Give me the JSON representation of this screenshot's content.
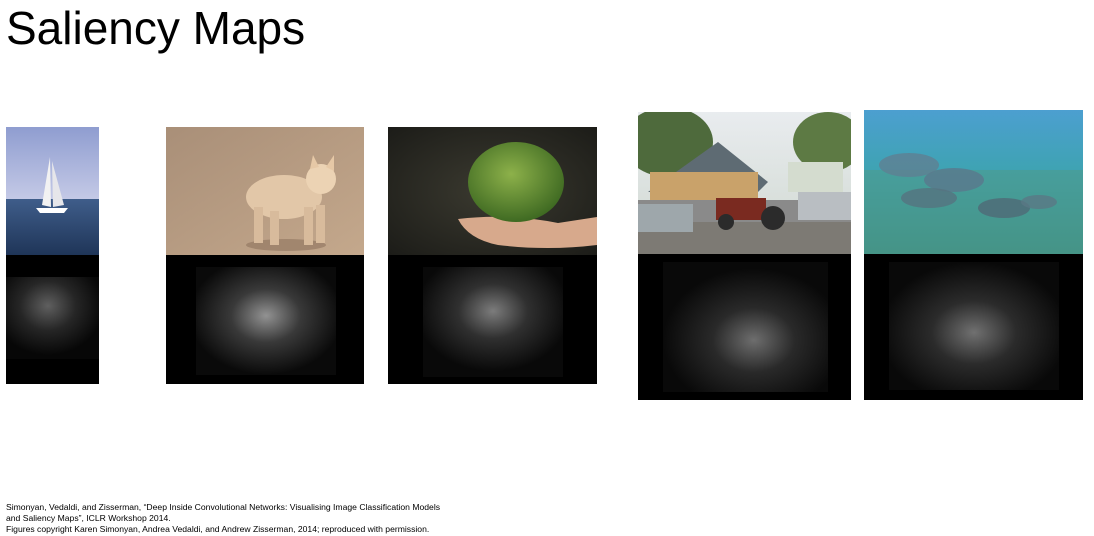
{
  "slide": {
    "title": "Saliency Maps"
  },
  "figures": [
    {
      "subject": "sailboat",
      "icon": "sailboat-photo"
    },
    {
      "subject": "dog",
      "icon": "dog-photo"
    },
    {
      "subject": "fruit in hand",
      "icon": "fruit-photo"
    },
    {
      "subject": "house with tractor",
      "icon": "house-photo"
    },
    {
      "subject": "stingrays underwater",
      "icon": "stingray-photo"
    }
  ],
  "citation": {
    "line1": "Simonyan, Vedaldi, and Zisserman, “Deep Inside Convolutional Networks: Visualising Image Classification Models",
    "line2": "and Saliency Maps”, ICLR Workshop 2014.",
    "line3": "Figures copyright Karen Simonyan, Andrea Vedaldi, and Andrew Zisserman, 2014; reproduced with permission."
  },
  "colors": {
    "background": "#ffffff",
    "saliency_bg": "#000000"
  }
}
